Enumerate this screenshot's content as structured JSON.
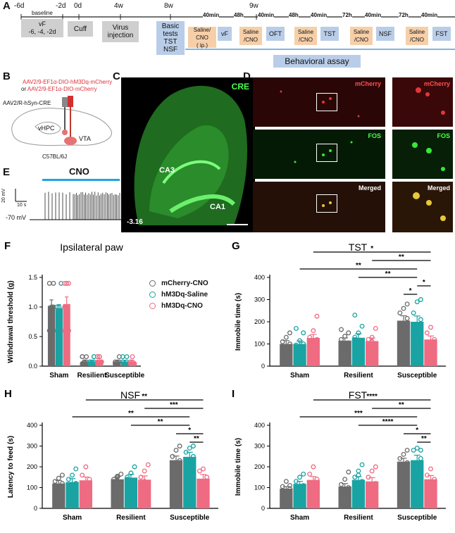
{
  "panelA": {
    "letter": "A",
    "ticks": [
      "-6d",
      "-2d",
      "0d",
      "4w",
      "8w",
      "9w"
    ],
    "baseline_label": "baseline",
    "vf_label": "vF",
    "baseline_days": "-6, -4, -2d",
    "cuff_label": "Cuff",
    "virus_label": "Virus\ninjection",
    "basic_tests_label": "Basic\ntests",
    "tst_nsf_label": "TST\nNSF",
    "intervals": [
      "40min",
      "48h",
      "40min",
      "48h",
      "40min",
      "72h",
      "40min",
      "72h",
      "40min"
    ],
    "saline_cno_first": "Saline/\nCNO\n( ip.)",
    "saline_cno": "Saline\n/CNO",
    "tests": [
      "vF",
      "OFT",
      "TST",
      "NSF",
      "FST"
    ],
    "behavioral_assay_label": "Behavioral assay"
  },
  "panelB": {
    "letter": "B",
    "virus1": "AAV2/9-EF1α-DIO-hM3Dq-mCherry",
    "virus_or": "or ",
    "virus2": "AAV2/9-EF1α-DIO-mCherry",
    "retro": "AAV2/R-hSyn-CRE",
    "region1": "vHPC",
    "region2": "VTA",
    "strain": "C57BL/6J"
  },
  "panelC": {
    "letter": "C",
    "stain": "CRE",
    "region_ca3": "CA3",
    "region_ca1": "CA1",
    "coordinate": "-3.16"
  },
  "panelD": {
    "letter": "D",
    "rows": [
      "mCherry",
      "FOS",
      "Merged"
    ]
  },
  "panelE": {
    "letter": "E",
    "drug": "CNO",
    "scale_v": "20 mV",
    "scale_t": "10 s",
    "rest": "-70 mV"
  },
  "legend": {
    "items": [
      {
        "name": "mCherry-CNO",
        "color": "#6b6b6b"
      },
      {
        "name": "hM3Dq-Saline",
        "color": "#1aa3a3"
      },
      {
        "name": "hM3Dq-CNO",
        "color": "#ef6b82"
      }
    ]
  },
  "chart_data": [
    {
      "letter": "F",
      "type": "bar",
      "title": "Ipsilateral paw",
      "ylabel": "Withdrawal threshold (g)",
      "categories": [
        "Sham",
        "Resilient",
        "Susceptible"
      ],
      "yticks": [
        "0.0",
        "0.5",
        "1.0",
        "1.5"
      ],
      "ylim": [
        0,
        1.5
      ],
      "series": [
        {
          "name": "mCherry-CNO",
          "values": [
            1.02,
            0.08,
            0.08
          ],
          "err": [
            0.1,
            0.02,
            0.02
          ]
        },
        {
          "name": "hM3Dq-Saline",
          "values": [
            0.98,
            0.08,
            0.08
          ],
          "err": [
            0.06,
            0.02,
            0.02
          ]
        },
        {
          "name": "hM3Dq-CNO",
          "values": [
            1.05,
            0.1,
            0.08
          ],
          "err": [
            0.12,
            0.03,
            0.02
          ]
        }
      ],
      "points": [
        [
          [
            0.6,
            0.6,
            1.0,
            1.4,
            1.0,
            1.4
          ],
          [
            0.6,
            1.0,
            1.4,
            1.0,
            0.6
          ],
          [
            0.6,
            1.0,
            1.4,
            1.4,
            1.4,
            0.6,
            1.0
          ]
        ],
        [
          [
            0.04,
            0.07,
            0.07,
            0.16,
            0.07,
            0.16,
            0.04,
            0.07,
            0.04,
            0.16
          ],
          [
            0.04,
            0.07,
            0.16,
            0.07,
            0.04,
            0.16,
            0.07,
            0.04,
            0.07
          ],
          [
            0.07,
            0.16,
            0.07,
            0.04,
            0.16,
            0.07,
            0.16,
            0.04,
            0.07,
            0.16
          ]
        ],
        [
          [
            0.04,
            0.07,
            0.16,
            0.07,
            0.04,
            0.07,
            0.04
          ],
          [
            0.07,
            0.04,
            0.16,
            0.07,
            0.04,
            0.07,
            0.16
          ],
          [
            0.04,
            0.07,
            0.04,
            0.07,
            0.16,
            0.04,
            0.07
          ]
        ]
      ],
      "sig": []
    },
    {
      "letter": "G",
      "type": "bar",
      "title": "TST",
      "ylabel": "Immobile time (s)",
      "categories": [
        "Sham",
        "Resilient",
        "Susceptible"
      ],
      "yticks": [
        "0",
        "100",
        "200",
        "300",
        "400"
      ],
      "ylim": [
        0,
        400
      ],
      "series": [
        {
          "name": "mCherry-CNO",
          "values": [
            100,
            115,
            205
          ],
          "err": [
            15,
            12,
            22
          ]
        },
        {
          "name": "hM3Dq-Saline",
          "values": [
            100,
            128,
            200
          ],
          "err": [
            14,
            18,
            26
          ]
        },
        {
          "name": "hM3Dq-CNO",
          "values": [
            127,
            113,
            120
          ],
          "err": [
            16,
            14,
            16
          ]
        }
      ],
      "points": [
        [
          [
            60,
            80,
            100,
            110,
            130,
            150,
            75
          ],
          [
            55,
            80,
            100,
            95,
            115,
            150,
            170
          ],
          [
            75,
            100,
            120,
            130,
            160,
            225
          ]
        ],
        [
          [
            70,
            95,
            105,
            120,
            135,
            150,
            165,
            100,
            80
          ],
          [
            50,
            80,
            110,
            130,
            150,
            180,
            230,
            90,
            70,
            120
          ],
          [
            60,
            80,
            100,
            120,
            130,
            170,
            90,
            110
          ]
        ],
        [
          [
            130,
            175,
            215,
            240,
            260,
            280
          ],
          [
            130,
            160,
            210,
            240,
            290,
            300
          ],
          [
            70,
            95,
            120,
            150,
            175,
            110
          ]
        ]
      ],
      "sig": [
        {
          "from": 2.0,
          "to": 2.22,
          "level": 0,
          "label": "*"
        },
        {
          "from": 2.22,
          "to": 2.44,
          "level": 1,
          "label": "*"
        },
        {
          "from": 1.22,
          "to": 2.22,
          "level": 2,
          "label": "**"
        },
        {
          "from": 0.22,
          "to": 2.22,
          "level": 3,
          "label": "**"
        },
        {
          "from": 1.44,
          "to": 2.44,
          "level": 4,
          "label": "**"
        },
        {
          "from": 0.44,
          "to": 2.44,
          "level": 5,
          "label": "*"
        }
      ]
    },
    {
      "letter": "H",
      "type": "bar",
      "title": "NSF",
      "ylabel": "Latency to feed (s)",
      "categories": [
        "Sham",
        "Resilient",
        "Susceptible"
      ],
      "yticks": [
        "0",
        "100",
        "200",
        "300",
        "400"
      ],
      "ylim": [
        0,
        400
      ],
      "series": [
        {
          "name": "mCherry-CNO",
          "values": [
            120,
            140,
            232
          ],
          "err": [
            14,
            12,
            20
          ]
        },
        {
          "name": "hM3Dq-Saline",
          "values": [
            127,
            148,
            248
          ],
          "err": [
            16,
            16,
            22
          ]
        },
        {
          "name": "hM3Dq-CNO",
          "values": [
            135,
            138,
            143
          ],
          "err": [
            16,
            18,
            20
          ]
        }
      ],
      "points": [
        [
          [
            70,
            95,
            120,
            130,
            145,
            160,
            100
          ],
          [
            60,
            90,
            120,
            140,
            160,
            190
          ],
          [
            80,
            110,
            140,
            160,
            200,
            115
          ]
        ],
        [
          [
            80,
            105,
            125,
            140,
            155,
            165,
            130,
            150,
            120
          ],
          [
            70,
            100,
            130,
            150,
            170,
            200,
            140,
            110
          ],
          [
            70,
            100,
            120,
            150,
            180,
            210,
            90,
            130
          ]
        ],
        [
          [
            160,
            200,
            230,
            250,
            280,
            300
          ],
          [
            180,
            220,
            250,
            270,
            290,
            300
          ],
          [
            70,
            100,
            150,
            180,
            190,
            120
          ]
        ]
      ],
      "sig": [
        {
          "from": 2.22,
          "to": 2.44,
          "level": 0,
          "label": "**"
        },
        {
          "from": 2.0,
          "to": 2.44,
          "level": 1,
          "label": "*"
        },
        {
          "from": 1.22,
          "to": 2.22,
          "level": 2,
          "label": "**"
        },
        {
          "from": 0.22,
          "to": 2.22,
          "level": 3,
          "label": "**"
        },
        {
          "from": 1.44,
          "to": 2.44,
          "level": 4,
          "label": "***"
        },
        {
          "from": 0.44,
          "to": 2.44,
          "level": 5,
          "label": "**"
        }
      ]
    },
    {
      "letter": "I",
      "type": "bar",
      "title": "FST",
      "ylabel": "Immobile time (s)",
      "categories": [
        "Sham",
        "Resilient",
        "Susceptible"
      ],
      "yticks": [
        "0",
        "100",
        "200",
        "300",
        "400"
      ],
      "ylim": [
        0,
        400
      ],
      "series": [
        {
          "name": "mCherry-CNO",
          "values": [
            95,
            105,
            225
          ],
          "err": [
            10,
            14,
            16
          ]
        },
        {
          "name": "hM3Dq-Saline",
          "values": [
            118,
            137,
            232
          ],
          "err": [
            12,
            16,
            24
          ]
        },
        {
          "name": "hM3Dq-CNO",
          "values": [
            137,
            130,
            140
          ],
          "err": [
            16,
            18,
            18
          ]
        }
      ],
      "points": [
        [
          [
            60,
            80,
            95,
            105,
            130,
            110
          ],
          [
            70,
            90,
            110,
            130,
            150,
            165
          ],
          [
            80,
            110,
            140,
            165,
            200,
            120
          ]
        ],
        [
          [
            60,
            80,
            100,
            115,
            140,
            175,
            95,
            85
          ],
          [
            70,
            100,
            130,
            150,
            180,
            210,
            110,
            160
          ],
          [
            60,
            90,
            120,
            150,
            180,
            200,
            110
          ]
        ],
        [
          [
            160,
            190,
            220,
            240,
            260,
            280
          ],
          [
            130,
            200,
            240,
            280,
            290,
            280
          ],
          [
            80,
            110,
            140,
            160,
            190,
            120
          ]
        ]
      ],
      "sig": [
        {
          "from": 2.22,
          "to": 2.44,
          "level": 0,
          "label": "**"
        },
        {
          "from": 2.0,
          "to": 2.44,
          "level": 1,
          "label": "*"
        },
        {
          "from": 1.22,
          "to": 2.22,
          "level": 2,
          "label": "****"
        },
        {
          "from": 0.22,
          "to": 2.22,
          "level": 3,
          "label": "***"
        },
        {
          "from": 1.44,
          "to": 2.44,
          "level": 4,
          "label": "**"
        },
        {
          "from": 0.44,
          "to": 2.44,
          "level": 5,
          "label": "****"
        }
      ]
    }
  ]
}
